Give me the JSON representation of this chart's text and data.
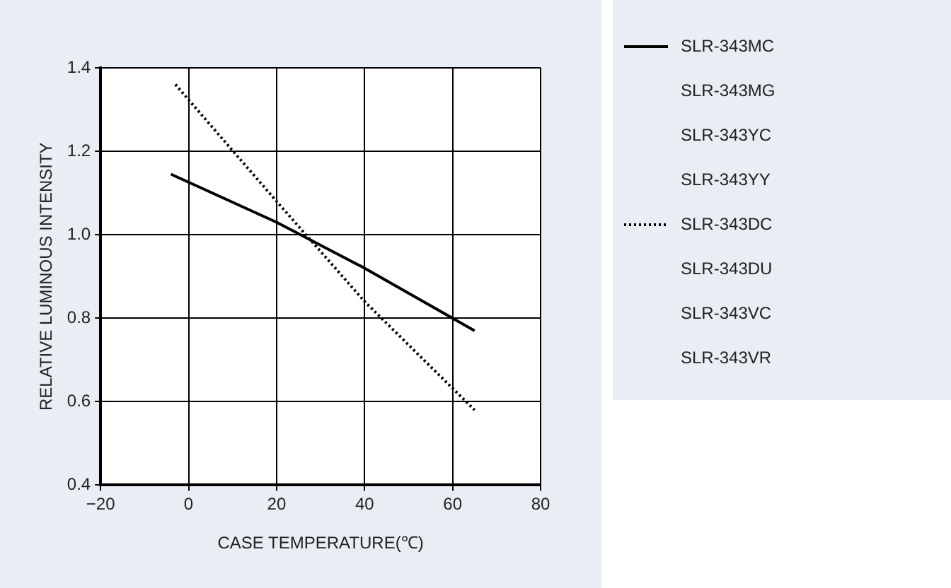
{
  "chart_data": {
    "type": "line",
    "xlabel": "CASE TEMPERATURE(℃)",
    "ylabel": "RELATIVE LUMINOUS INTENSITY",
    "xlim": [
      -20,
      80
    ],
    "xticks": [
      {
        "value": -20,
        "label": "−20"
      },
      0,
      20,
      40,
      60,
      80
    ],
    "ylim": [
      0.4,
      1.4
    ],
    "yticks": [
      0.4,
      0.6,
      0.8,
      {
        "value": 1,
        "label": "1.0"
      },
      1.2,
      1.4
    ],
    "grid": true,
    "legend": "right",
    "marker": "none",
    "series": [
      {
        "name": "SLR-343MC",
        "color": "#000000",
        "line_style": "solid",
        "x": [
          -4,
          20,
          40,
          60,
          65
        ],
        "values": [
          1.145,
          1.03,
          0.92,
          0.8,
          0.77
        ]
      },
      {
        "name": "SLR-343DC",
        "color": "#000000",
        "line_style": "dotted",
        "x": [
          -3,
          20,
          40,
          65
        ],
        "values": [
          1.36,
          1.08,
          0.84,
          0.58
        ]
      }
    ],
    "annotations": [
      "SLR-343MG",
      "SLR-343YC",
      "SLR-343YY",
      "SLR-343DU",
      "SLR-343VC",
      "SLR-343VR"
    ]
  }
}
